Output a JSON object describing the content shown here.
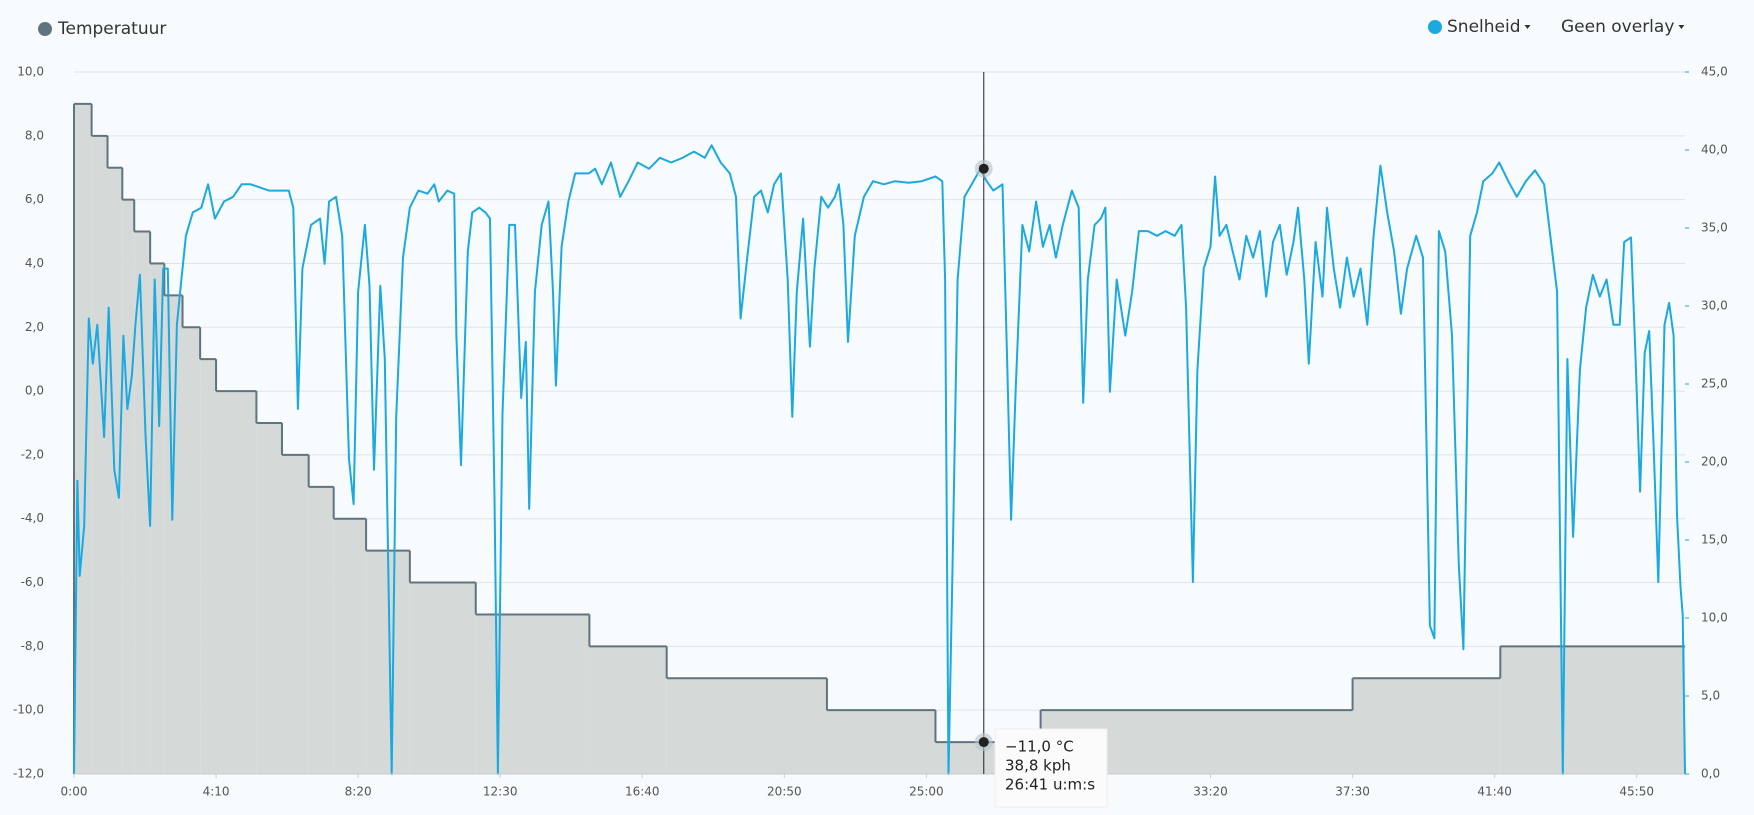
{
  "chart_data": {
    "type": "line",
    "xlim": [
      0,
      2835
    ],
    "xticks": [
      {
        "value": 0,
        "label": "0:00"
      },
      {
        "value": 250,
        "label": "4:10"
      },
      {
        "value": 500,
        "label": "8:20"
      },
      {
        "value": 750,
        "label": "12:30"
      },
      {
        "value": 1000,
        "label": "16:40"
      },
      {
        "value": 1250,
        "label": "20:50"
      },
      {
        "value": 1500,
        "label": "25:00"
      },
      {
        "value": 2000,
        "label": "33:20"
      },
      {
        "value": 2250,
        "label": "37:30"
      },
      {
        "value": 2500,
        "label": "41:40"
      },
      {
        "value": 2750,
        "label": "45:50"
      }
    ],
    "ylim": [
      -12,
      10
    ],
    "yticks": [
      {
        "value": -12,
        "label": "-12,0"
      },
      {
        "value": -10,
        "label": "-10,0"
      },
      {
        "value": -8,
        "label": "-8,0"
      },
      {
        "value": -6,
        "label": "-6,0"
      },
      {
        "value": -4,
        "label": "-4,0"
      },
      {
        "value": -2,
        "label": "-2,0"
      },
      {
        "value": 0,
        "label": "0,0"
      },
      {
        "value": 2,
        "label": "2,0"
      },
      {
        "value": 4,
        "label": "4,0"
      },
      {
        "value": 6,
        "label": "6,0"
      },
      {
        "value": 8,
        "label": "8,0"
      },
      {
        "value": 10,
        "label": "10,0"
      }
    ],
    "y2lim": [
      0,
      45
    ],
    "y2ticks": [
      {
        "value": 0,
        "label": "0,0"
      },
      {
        "value": 5,
        "label": "5,0"
      },
      {
        "value": 10,
        "label": "10,0"
      },
      {
        "value": 15,
        "label": "15,0"
      },
      {
        "value": 20,
        "label": "20,0"
      },
      {
        "value": 25,
        "label": "25,0"
      },
      {
        "value": 30,
        "label": "30,0"
      },
      {
        "value": 35,
        "label": "35,0"
      },
      {
        "value": 40,
        "label": "40,0"
      },
      {
        "value": 45,
        "label": "45,0"
      }
    ],
    "grid": true,
    "overlay_menu": "Geen overlay",
    "series": [
      {
        "name": "Temperatuur",
        "color": "#5f7380",
        "fill": "#d5dad9",
        "step": true,
        "x": [
          0,
          31,
          59,
          85,
          106,
          134,
          159,
          191,
          222,
          250,
          321,
          366,
          413,
          457,
          514,
          591,
          707,
          907,
          1043,
          1325,
          1516,
          1701,
          2250,
          2510,
          2835
        ],
        "values": [
          9,
          8,
          7,
          6,
          5,
          4,
          3,
          2,
          1,
          0,
          -1,
          -2,
          -3,
          -4,
          -5,
          -6,
          -7,
          -8,
          -9,
          -10,
          -11,
          -10,
          -9,
          -8,
          -8
        ]
      },
      {
        "name": "Snelheid",
        "color": "#1ba9e0",
        "axis": "y2",
        "x": [
          0,
          6,
          10,
          18,
          26,
          33,
          41,
          53,
          61,
          71,
          79,
          87,
          94,
          102,
          108,
          116,
          126,
          134,
          142,
          150,
          157,
          165,
          173,
          181,
          189,
          197,
          209,
          224,
          236,
          248,
          264,
          280,
          295,
          311,
          343,
          378,
          386,
          394,
          402,
          417,
          433,
          441,
          449,
          461,
          472,
          484,
          492,
          500,
          512,
          520,
          528,
          539,
          547,
          559,
          567,
          579,
          591,
          606,
          622,
          634,
          642,
          657,
          669,
          673,
          681,
          693,
          701,
          713,
          724,
          732,
          740,
          746,
          754,
          766,
          776,
          787,
          795,
          801,
          811,
          823,
          835,
          843,
          848,
          858,
          870,
          882,
          894,
          906,
          917,
          929,
          945,
          961,
          976,
          992,
          1012,
          1031,
          1051,
          1071,
          1091,
          1110,
          1122,
          1138,
          1154,
          1165,
          1173,
          1185,
          1197,
          1209,
          1221,
          1232,
          1244,
          1256,
          1264,
          1272,
          1283,
          1295,
          1303,
          1315,
          1327,
          1339,
          1346,
          1354,
          1362,
          1374,
          1390,
          1406,
          1425,
          1445,
          1469,
          1492,
          1516,
          1528,
          1533,
          1539,
          1547,
          1555,
          1567,
          1583,
          1595,
          1606,
          1618,
          1634,
          1642,
          1649,
          1657,
          1669,
          1681,
          1693,
          1705,
          1717,
          1728,
          1740,
          1756,
          1768,
          1776,
          1784,
          1796,
          1807,
          1815,
          1823,
          1835,
          1850,
          1862,
          1874,
          1890,
          1906,
          1921,
          1937,
          1949,
          1957,
          1969,
          1977,
          1988,
          2000,
          2008,
          2016,
          2028,
          2039,
          2051,
          2063,
          2075,
          2087,
          2098,
          2110,
          2122,
          2134,
          2146,
          2154,
          2165,
          2173,
          2185,
          2197,
          2205,
          2217,
          2228,
          2240,
          2252,
          2264,
          2276,
          2287,
          2299,
          2311,
          2323,
          2335,
          2346,
          2362,
          2374,
          2386,
          2394,
          2402,
          2413,
          2425,
          2437,
          2445,
          2457,
          2469,
          2480,
          2496,
          2508,
          2524,
          2539,
          2555,
          2571,
          2587,
          2598,
          2610,
          2620,
          2628,
          2638,
          2650,
          2661,
          2673,
          2685,
          2697,
          2709,
          2720,
          2728,
          2740,
          2748,
          2756,
          2764,
          2772,
          2780,
          2788,
          2799,
          2807,
          2815,
          2821,
          2827,
          2831,
          2835
        ],
        "values": [
          0,
          18.8,
          12.7,
          15.9,
          29.2,
          26.3,
          28.8,
          21.6,
          29.9,
          19.5,
          17.7,
          28.1,
          23.4,
          25.6,
          28.8,
          32.0,
          21.6,
          15.9,
          31.7,
          22.3,
          32.4,
          32.4,
          16.3,
          28.8,
          31.7,
          34.5,
          36.0,
          36.3,
          37.8,
          35.6,
          36.7,
          37.0,
          37.8,
          37.8,
          37.4,
          37.4,
          36.3,
          23.4,
          32.4,
          35.2,
          35.6,
          32.7,
          36.7,
          37.0,
          34.5,
          20.2,
          17.3,
          30.9,
          35.2,
          31.3,
          19.5,
          31.3,
          26.6,
          0,
          22.9,
          33.1,
          36.3,
          37.4,
          37.2,
          37.8,
          36.7,
          37.4,
          37.2,
          28.1,
          19.8,
          33.5,
          36.0,
          36.3,
          36.0,
          35.6,
          17.7,
          0,
          23.1,
          35.2,
          35.2,
          24.1,
          27.7,
          17.0,
          30.9,
          35.2,
          36.7,
          30.9,
          24.9,
          33.8,
          36.7,
          38.5,
          38.5,
          38.5,
          38.8,
          37.8,
          39.2,
          37.0,
          38.0,
          39.2,
          38.8,
          39.5,
          39.2,
          39.5,
          39.9,
          39.5,
          40.3,
          39.2,
          38.5,
          37.0,
          29.2,
          33.2,
          37.0,
          37.4,
          36.0,
          37.8,
          38.5,
          31.7,
          22.9,
          30.9,
          35.6,
          27.4,
          32.4,
          37.0,
          36.3,
          37.0,
          37.8,
          35.2,
          27.7,
          34.5,
          37.0,
          38.0,
          37.8,
          38.0,
          37.9,
          38.0,
          38.3,
          38.0,
          31.7,
          0,
          15.2,
          31.7,
          37.0,
          38.0,
          38.8,
          38.0,
          37.4,
          37.8,
          26.6,
          16.3,
          24.5,
          35.2,
          33.5,
          36.7,
          33.8,
          35.2,
          33.1,
          35.2,
          37.4,
          36.3,
          23.8,
          31.7,
          35.2,
          35.6,
          36.3,
          24.5,
          31.7,
          28.1,
          30.9,
          34.8,
          34.8,
          34.5,
          34.8,
          34.5,
          35.2,
          29.9,
          12.3,
          25.9,
          32.4,
          33.8,
          38.3,
          34.5,
          35.2,
          33.5,
          31.7,
          34.5,
          33.1,
          34.8,
          30.6,
          34.1,
          35.2,
          32.0,
          34.1,
          36.3,
          31.7,
          26.3,
          34.1,
          30.6,
          36.3,
          32.4,
          29.9,
          33.1,
          30.6,
          32.4,
          28.8,
          34.5,
          39.0,
          36.0,
          33.5,
          29.5,
          32.4,
          34.5,
          33.1,
          9.5,
          8.7,
          34.8,
          33.5,
          28.1,
          13.4,
          8.0,
          34.5,
          36.0,
          38.0,
          38.5,
          39.2,
          38.0,
          37.0,
          38.0,
          38.7,
          37.8,
          34.5,
          30.9,
          0,
          26.6,
          15.2,
          25.9,
          29.9,
          32.0,
          30.6,
          31.7,
          28.8,
          28.8,
          34.1,
          34.4,
          26.6,
          18.1,
          27.0,
          28.4,
          20.9,
          12.3,
          28.8,
          30.2,
          28.1,
          16.6,
          12.0,
          10.2,
          0
        ]
      }
    ],
    "hover": {
      "x": 1601,
      "label": "26:41 u:m:s",
      "points": [
        {
          "series": 0,
          "value": -11,
          "label": "−11,0 °C"
        },
        {
          "series": 1,
          "value": 38.8,
          "label": "38,8 kph"
        }
      ]
    }
  }
}
